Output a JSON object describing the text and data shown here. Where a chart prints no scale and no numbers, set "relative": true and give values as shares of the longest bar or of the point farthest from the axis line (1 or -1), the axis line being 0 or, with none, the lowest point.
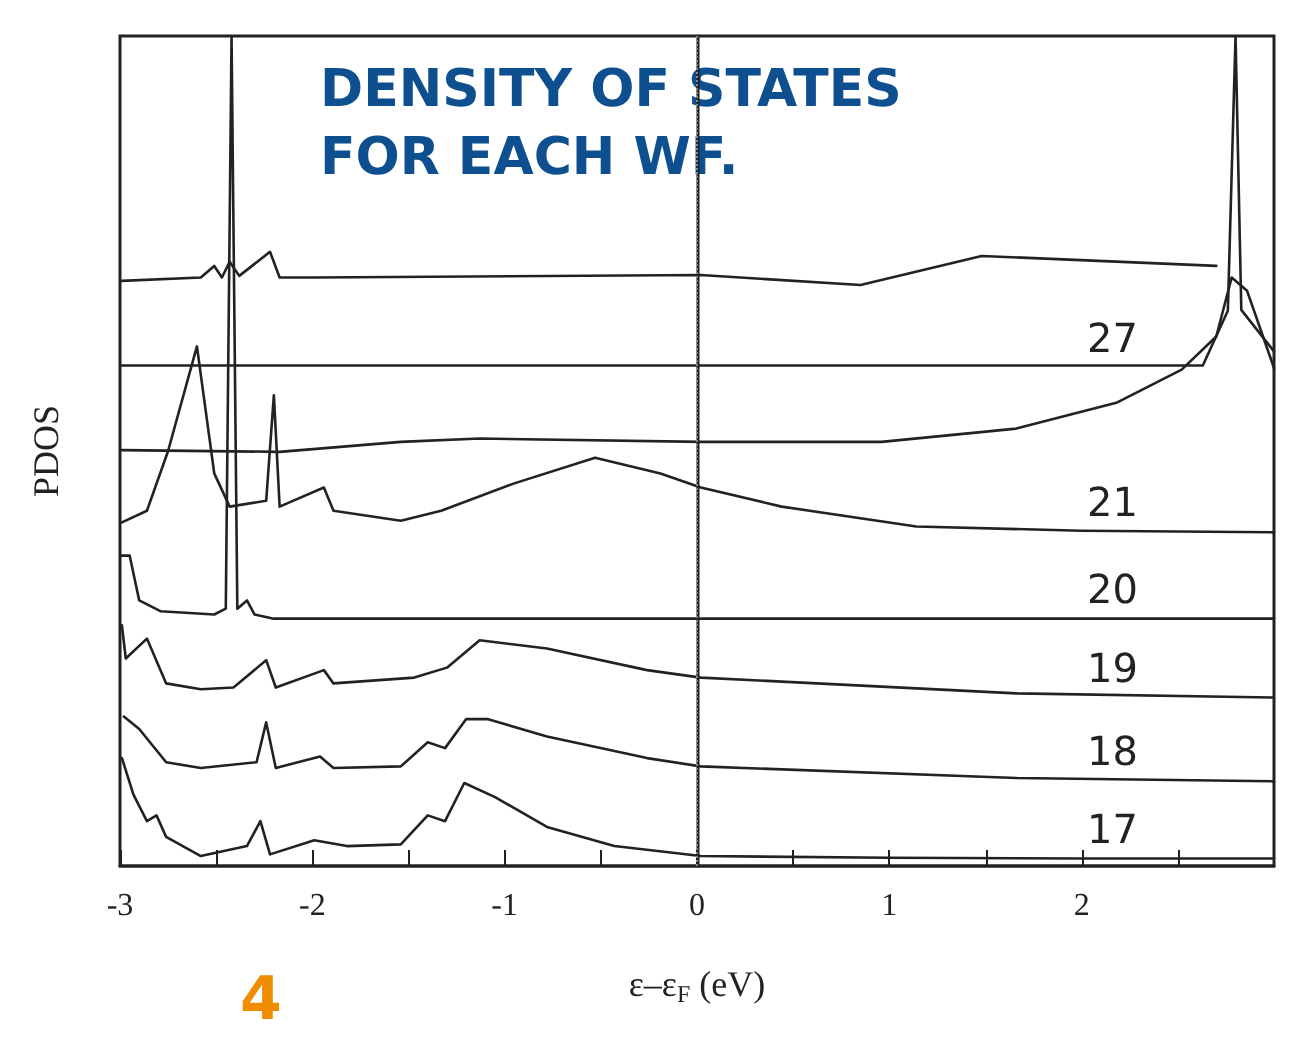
{
  "chart_data": {
    "type": "line",
    "relative": true,
    "title": "DENSITY OF STATES FOR EACH WF.",
    "xlabel": "ε–ε$_{F}$ (eV)",
    "ylabel": "PDOS",
    "annotations": [
      "4"
    ],
    "xlim": [
      -3,
      3
    ],
    "xticks": [
      -3,
      {
        "value": -2.5,
        "label": null
      },
      -2,
      {
        "value": -1.5,
        "label": null
      },
      -1,
      {
        "value": -0.5,
        "label": null
      },
      0,
      {
        "value": 0.5,
        "label": null
      },
      1,
      {
        "value": 1.5,
        "label": null
      },
      2,
      {
        "value": 2.5,
        "label": null
      }
    ],
    "grid": false,
    "legend": false,
    "marker": "none",
    "line_style": "solid",
    "ref_lines": [
      {
        "axis": "x",
        "value": 0,
        "color": "#888888",
        "line_style": "dotted"
      }
    ],
    "series": [
      {
        "name": "17",
        "color": "#222222",
        "x": [
          -2.99,
          -2.93,
          -2.86,
          -2.81,
          -2.76,
          -2.58,
          -2.34,
          -2.27,
          -2.22,
          -1.99,
          -1.82,
          -1.54,
          -1.4,
          -1.31,
          -1.21,
          -1.05,
          -0.78,
          -0.43,
          0.02,
          1,
          2,
          3
        ],
        "values": [
          0.13,
          0.086,
          0.054,
          0.061,
          0.035,
          0.012,
          0.024,
          0.054,
          0.014,
          0.031,
          0.024,
          0.026,
          0.061,
          0.054,
          0.1,
          0.083,
          0.047,
          0.024,
          0.012,
          0.01,
          0.009,
          0.009
        ]
      },
      {
        "name": "18",
        "color": "#222222",
        "x": [
          -2.98,
          -2.9,
          -2.76,
          -2.58,
          -2.29,
          -2.24,
          -2.19,
          -1.96,
          -1.89,
          -1.54,
          -1.4,
          -1.31,
          -1.2,
          -1.09,
          -0.78,
          -0.26,
          0.02,
          1.66,
          3
        ],
        "values": [
          0.18,
          0.165,
          0.125,
          0.118,
          0.125,
          0.173,
          0.118,
          0.132,
          0.118,
          0.12,
          0.149,
          0.142,
          0.177,
          0.177,
          0.156,
          0.13,
          0.12,
          0.106,
          0.102
        ]
      },
      {
        "name": "19",
        "color": "#222222",
        "x": [
          -2.99,
          -2.97,
          -2.86,
          -2.76,
          -2.58,
          -2.41,
          -2.24,
          -2.19,
          -1.94,
          -1.89,
          -1.47,
          -1.3,
          -1.13,
          -0.78,
          -0.26,
          0.02,
          1.66,
          3
        ],
        "values": [
          0.29,
          0.25,
          0.274,
          0.22,
          0.213,
          0.215,
          0.248,
          0.215,
          0.236,
          0.22,
          0.227,
          0.239,
          0.272,
          0.262,
          0.236,
          0.227,
          0.208,
          0.203
        ]
      },
      {
        "name": "20",
        "color": "#222222",
        "x": [
          -2.99,
          -2.95,
          -2.9,
          -2.79,
          -2.51,
          -2.45,
          -2.42,
          -2.39,
          -2.34,
          -2.3,
          -2.2,
          0,
          3
        ],
        "values": [
          0.374,
          0.374,
          0.32,
          0.307,
          0.303,
          0.31,
          1.0,
          0.31,
          0.32,
          0.303,
          0.298,
          0.298,
          0.298
        ]
      },
      {
        "name": "21",
        "color": "#222222",
        "x": [
          -2.99,
          -2.86,
          -2.75,
          -2.6,
          -2.51,
          -2.43,
          -2.24,
          -2.2,
          -2.17,
          -1.94,
          -1.89,
          -1.54,
          -1.33,
          -0.95,
          -0.53,
          -0.19,
          0.02,
          0.44,
          1.14,
          2,
          3
        ],
        "values": [
          0.414,
          0.428,
          0.5,
          0.626,
          0.473,
          0.433,
          0.44,
          0.567,
          0.433,
          0.456,
          0.428,
          0.416,
          0.428,
          0.461,
          0.492,
          0.473,
          0.456,
          0.433,
          0.409,
          0.404,
          0.402
        ]
      },
      {
        "name": "27",
        "color": "#222222",
        "x": [
          -2.99,
          -2.17,
          -1.54,
          -1.13,
          0.02,
          0.96,
          1.66,
          2.18,
          2.52,
          2.7,
          2.78,
          2.86,
          3
        ],
        "values": [
          0.501,
          0.499,
          0.511,
          0.515,
          0.511,
          0.511,
          0.527,
          0.558,
          0.598,
          0.638,
          0.709,
          0.693,
          0.6
        ]
      },
      {
        "color": "#222222",
        "x": [
          -2.99,
          0,
          2.63,
          2.76,
          2.8,
          2.83,
          3
        ],
        "values": [
          0.603,
          0.603,
          0.603,
          0.669,
          1.0,
          0.67,
          0.62
        ]
      },
      {
        "color": "#222222",
        "x": [
          -2.99,
          -2.58,
          -2.51,
          -2.47,
          -2.43,
          -2.38,
          -2.22,
          -2.17,
          -1.99,
          0.02,
          0.85,
          1.48,
          2.7
        ],
        "values": [
          0.705,
          0.709,
          0.723,
          0.709,
          0.728,
          0.711,
          0.74,
          0.709,
          0.709,
          0.712,
          0.7,
          0.735,
          0.723
        ]
      }
    ]
  }
}
